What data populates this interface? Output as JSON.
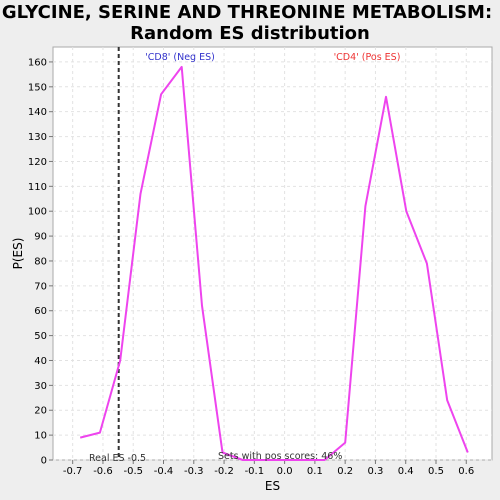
{
  "chart_data": {
    "type": "line",
    "title_line1": "GLYCINE, SERINE AND THREONINE METABOLISM:",
    "title_line2": "Random ES distribution",
    "xlabel": "ES",
    "ylabel": "P(ES)",
    "xlim": [
      -0.765,
      0.685
    ],
    "ylim": [
      0,
      166
    ],
    "xticks": [
      "-0.7",
      "-0.6",
      "-0.5",
      "-0.4",
      "-0.3",
      "-0.2",
      "-0.1",
      "0.0",
      "0.1",
      "0.2",
      "0.3",
      "0.4",
      "0.5",
      "0.6"
    ],
    "yticks": [
      "0",
      "10",
      "20",
      "30",
      "40",
      "50",
      "60",
      "70",
      "80",
      "90",
      "100",
      "110",
      "120",
      "130",
      "140",
      "150",
      "160"
    ],
    "grid": true,
    "series": [
      {
        "color": "#ee44ee",
        "x": [
          -0.675,
          -0.61,
          -0.543,
          -0.476,
          -0.408,
          -0.34,
          -0.273,
          -0.205,
          -0.138,
          -0.07,
          -0.003,
          0.065,
          0.132,
          0.2,
          0.267,
          0.335,
          0.402,
          0.47,
          0.537,
          0.605
        ],
        "y": [
          9,
          11,
          40,
          107,
          147,
          158,
          62,
          3,
          0,
          0,
          0,
          0,
          0,
          7,
          102,
          146,
          100,
          79,
          24,
          3
        ]
      }
    ],
    "real_es": -0.5,
    "real_es_x": -0.548,
    "annotations": {
      "neg_label": "'CD8' (Neg ES)",
      "pos_label": "'CD4' (Pos ES)",
      "real_es_label": "Real ES -0.5",
      "pos_scores_label": "Sets with pos scores: 46%"
    },
    "colors": {
      "background": "#eeeeee",
      "plot_background": "#ffffff",
      "line": "#ee44ee",
      "neg_label": "#3333cc",
      "pos_label": "#ee3333",
      "grid": "#e2e2e2"
    }
  }
}
